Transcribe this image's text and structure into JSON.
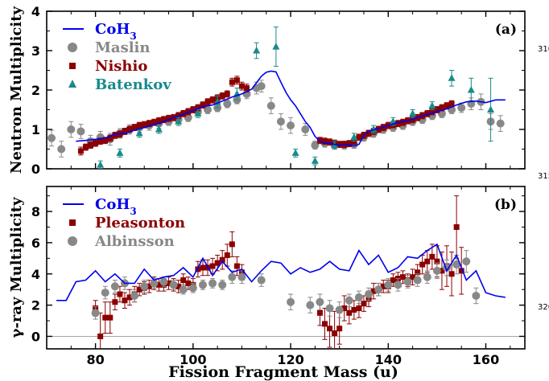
{
  "figure": {
    "xlabel": "Fission Fragment Mass (u)",
    "line_numbers": [
      "310",
      "315",
      "320"
    ],
    "x_ticks": [
      80,
      100,
      120,
      140,
      160
    ]
  },
  "chart_data": [
    {
      "type": "scatter",
      "panel_label": "(a)",
      "ylabel": "Neutron Multiplicity",
      "xlim": [
        70,
        168
      ],
      "ylim": [
        0,
        4
      ],
      "y_ticks": [
        0,
        1,
        2,
        3,
        4
      ],
      "legend_placement": "top-left",
      "series": [
        {
          "name": "CoH3",
          "kind": "line",
          "color": "#0000ee",
          "x": [
            76,
            78,
            80,
            82,
            84,
            86,
            88,
            90,
            92,
            94,
            96,
            98,
            100,
            102,
            104,
            106,
            108,
            110,
            112,
            114,
            115,
            116,
            117,
            118,
            119,
            120,
            121,
            122,
            123,
            124,
            125,
            126,
            127,
            128,
            129,
            130,
            131,
            132,
            133,
            134,
            135,
            136,
            138,
            140,
            142,
            144,
            146,
            148,
            150,
            152,
            154,
            156,
            158,
            160,
            162,
            164
          ],
          "y": [
            0.7,
            0.72,
            0.75,
            0.78,
            0.88,
            0.9,
            0.98,
            1.05,
            1.12,
            1.2,
            1.3,
            1.38,
            1.48,
            1.58,
            1.62,
            1.72,
            1.82,
            1.9,
            2.02,
            2.35,
            2.45,
            2.48,
            2.46,
            2.2,
            1.95,
            1.75,
            1.6,
            1.4,
            1.2,
            1.05,
            0.82,
            0.7,
            0.65,
            0.65,
            0.62,
            0.6,
            0.62,
            0.6,
            0.58,
            0.62,
            0.85,
            0.95,
            1.02,
            1.1,
            1.18,
            1.22,
            1.3,
            1.38,
            1.45,
            1.52,
            1.62,
            1.7,
            1.72,
            1.68,
            1.75,
            1.75
          ]
        },
        {
          "name": "Maslin",
          "kind": "circle",
          "color": "#888888",
          "x": [
            71,
            73,
            75,
            77,
            79,
            81,
            83,
            85,
            87,
            89,
            91,
            93,
            95,
            97,
            99,
            101,
            103,
            105,
            107,
            109,
            111,
            113,
            114,
            116,
            118,
            120,
            123,
            125,
            127,
            129,
            131,
            133,
            135,
            137,
            139,
            141,
            143,
            145,
            147,
            149,
            151,
            153,
            155,
            157,
            159,
            161,
            163
          ],
          "y": [
            0.78,
            0.5,
            1.0,
            0.95,
            0.7,
            0.8,
            0.75,
            0.9,
            1.0,
            1.05,
            1.1,
            1.15,
            1.2,
            1.25,
            1.3,
            1.45,
            1.5,
            1.55,
            1.65,
            1.75,
            1.9,
            2.05,
            2.1,
            1.6,
            1.2,
            1.1,
            1.0,
            0.6,
            0.65,
            0.6,
            0.6,
            0.62,
            0.8,
            0.9,
            1.0,
            1.05,
            1.1,
            1.2,
            1.25,
            1.35,
            1.4,
            1.5,
            1.55,
            1.65,
            1.7,
            1.2,
            1.15
          ],
          "err": [
            0.2,
            0.2,
            0.2,
            0.18,
            0.15,
            0.15,
            0.15,
            0.12,
            0.12,
            0.12,
            0.12,
            0.12,
            0.1,
            0.1,
            0.1,
            0.1,
            0.1,
            0.1,
            0.1,
            0.1,
            0.12,
            0.15,
            0.15,
            0.2,
            0.2,
            0.2,
            0.15,
            0.1,
            0.1,
            0.1,
            0.1,
            0.1,
            0.1,
            0.1,
            0.1,
            0.1,
            0.1,
            0.1,
            0.1,
            0.1,
            0.1,
            0.1,
            0.12,
            0.15,
            0.2,
            0.2,
            0.2
          ]
        },
        {
          "name": "Nishio",
          "kind": "square",
          "color": "#8b0000",
          "x": [
            77,
            78,
            79,
            80,
            81,
            82,
            83,
            84,
            85,
            86,
            87,
            88,
            89,
            90,
            91,
            92,
            93,
            94,
            95,
            96,
            97,
            98,
            99,
            100,
            101,
            102,
            103,
            104,
            105,
            106,
            107,
            108,
            109,
            110,
            111,
            126,
            127,
            128,
            129,
            130,
            131,
            132,
            133,
            134,
            135,
            136,
            137,
            138,
            139,
            140,
            141,
            142,
            143,
            144,
            145,
            146,
            147,
            148,
            149,
            150,
            151,
            152,
            153
          ],
          "y": [
            0.45,
            0.55,
            0.6,
            0.65,
            0.7,
            0.72,
            0.78,
            0.85,
            0.88,
            0.95,
            1.0,
            1.05,
            1.1,
            1.12,
            1.15,
            1.18,
            1.22,
            1.25,
            1.28,
            1.3,
            1.35,
            1.4,
            1.45,
            1.5,
            1.55,
            1.62,
            1.7,
            1.75,
            1.8,
            1.85,
            1.9,
            2.2,
            2.25,
            2.1,
            2.05,
            0.72,
            0.7,
            0.68,
            0.65,
            0.62,
            0.62,
            0.64,
            0.7,
            0.8,
            0.85,
            0.9,
            0.95,
            1.0,
            1.05,
            1.1,
            1.12,
            1.15,
            1.18,
            1.22,
            1.25,
            1.3,
            1.35,
            1.4,
            1.45,
            1.5,
            1.55,
            1.6,
            1.65
          ],
          "err": [
            0.1,
            0.08,
            0.08,
            0.08,
            0.08,
            0.08,
            0.08,
            0.08,
            0.08,
            0.08,
            0.08,
            0.08,
            0.08,
            0.08,
            0.08,
            0.08,
            0.08,
            0.08,
            0.08,
            0.08,
            0.08,
            0.08,
            0.08,
            0.08,
            0.08,
            0.08,
            0.08,
            0.08,
            0.08,
            0.08,
            0.08,
            0.1,
            0.1,
            0.1,
            0.1,
            0.08,
            0.08,
            0.08,
            0.08,
            0.08,
            0.08,
            0.08,
            0.08,
            0.08,
            0.08,
            0.08,
            0.08,
            0.08,
            0.08,
            0.08,
            0.08,
            0.08,
            0.08,
            0.08,
            0.08,
            0.08,
            0.08,
            0.08,
            0.08,
            0.08,
            0.08,
            0.08,
            0.08
          ]
        },
        {
          "name": "Batenkov",
          "kind": "triangle",
          "color": "#1a8a8a",
          "x": [
            81,
            85,
            89,
            93,
            97,
            101,
            105,
            109,
            113,
            117,
            121,
            125,
            129,
            133,
            137,
            141,
            145,
            149,
            153,
            157,
            161
          ],
          "y": [
            0.1,
            0.4,
            0.9,
            1.0,
            1.2,
            1.4,
            1.7,
            1.9,
            3.0,
            3.1,
            0.4,
            0.2,
            0.6,
            0.8,
            1.0,
            1.2,
            1.4,
            1.6,
            2.3,
            2.0,
            1.5
          ],
          "err": [
            0.1,
            0.1,
            0.1,
            0.1,
            0.1,
            0.1,
            0.15,
            0.15,
            0.2,
            0.5,
            0.1,
            0.1,
            0.1,
            0.1,
            0.1,
            0.1,
            0.1,
            0.1,
            0.2,
            0.3,
            0.8
          ]
        }
      ]
    },
    {
      "type": "scatter",
      "panel_label": "(b)",
      "ylabel": "γ-ray Multiplicity",
      "xlim": [
        70,
        168
      ],
      "ylim": [
        -0.8,
        9.6
      ],
      "y_ticks": [
        0,
        2,
        4,
        6,
        8
      ],
      "legend_placement": "top-left",
      "series": [
        {
          "name": "CoH3",
          "kind": "line",
          "color": "#0000ee",
          "x": [
            72,
            74,
            76,
            78,
            80,
            82,
            84,
            86,
            88,
            90,
            92,
            94,
            96,
            98,
            100,
            102,
            104,
            106,
            108,
            110,
            112,
            114,
            116,
            118,
            120,
            122,
            124,
            126,
            128,
            130,
            132,
            134,
            136,
            138,
            140,
            142,
            144,
            146,
            148,
            150,
            152,
            154,
            156,
            158,
            160,
            162,
            164
          ],
          "y": [
            2.3,
            2.3,
            3.5,
            3.6,
            4.2,
            3.5,
            4.0,
            3.4,
            3.4,
            4.3,
            3.6,
            3.8,
            3.9,
            4.4,
            3.8,
            5.0,
            3.9,
            4.8,
            4.1,
            4.3,
            3.5,
            4.2,
            4.8,
            4.7,
            4.0,
            4.4,
            4.1,
            4.3,
            4.8,
            4.3,
            4.2,
            5.5,
            4.6,
            5.2,
            4.1,
            4.4,
            5.1,
            5.0,
            5.5,
            5.9,
            4.2,
            5.2,
            3.6,
            4.2,
            2.8,
            2.6,
            2.5
          ]
        },
        {
          "name": "Pleasonton",
          "kind": "square",
          "color": "#8b0000",
          "x": [
            80,
            81,
            82,
            83,
            84,
            85,
            86,
            87,
            88,
            89,
            90,
            91,
            92,
            93,
            94,
            95,
            96,
            97,
            98,
            99,
            100,
            101,
            102,
            103,
            104,
            105,
            106,
            107,
            108,
            109,
            110,
            126,
            127,
            128,
            129,
            130,
            131,
            132,
            133,
            134,
            135,
            136,
            137,
            138,
            139,
            140,
            141,
            142,
            143,
            144,
            145,
            146,
            147,
            148,
            149,
            150,
            151,
            152,
            153,
            154,
            155
          ],
          "y": [
            1.8,
            0.0,
            1.2,
            1.2,
            2.2,
            2.7,
            2.3,
            2.5,
            2.7,
            3.0,
            3.1,
            3.2,
            3.4,
            3.3,
            3.3,
            3.4,
            3.3,
            3.2,
            3.6,
            3.4,
            3.3,
            4.3,
            4.4,
            4.4,
            4.5,
            4.7,
            4.9,
            5.2,
            5.9,
            4.5,
            4.1,
            1.5,
            0.8,
            0.5,
            0.2,
            0.5,
            1.8,
            1.5,
            1.7,
            1.8,
            2.1,
            2.4,
            2.9,
            3.0,
            3.2,
            3.2,
            3.6,
            3.7,
            3.8,
            3.6,
            3.8,
            4.1,
            4.6,
            4.8,
            5.1,
            4.8,
            4.2,
            4.5,
            4.0,
            7.0,
            4.2
          ],
          "err": [
            0.5,
            1.5,
            1.0,
            1.0,
            0.5,
            0.5,
            0.5,
            0.5,
            0.5,
            0.4,
            0.4,
            0.4,
            0.4,
            0.4,
            0.4,
            0.4,
            0.4,
            0.4,
            0.4,
            0.4,
            0.4,
            0.5,
            0.5,
            0.5,
            0.5,
            0.5,
            0.6,
            0.7,
            0.8,
            0.6,
            0.5,
            0.8,
            1.0,
            1.2,
            1.4,
            1.0,
            0.8,
            0.7,
            0.6,
            0.6,
            0.5,
            0.5,
            0.5,
            0.4,
            0.4,
            0.4,
            0.4,
            0.4,
            0.4,
            0.4,
            0.5,
            0.5,
            0.6,
            0.7,
            0.8,
            1.0,
            1.2,
            1.3,
            1.4,
            2.0,
            1.5
          ]
        },
        {
          "name": "Albinsson",
          "kind": "circle",
          "color": "#888888",
          "x": [
            80,
            82,
            84,
            86,
            88,
            90,
            92,
            94,
            96,
            98,
            100,
            102,
            104,
            106,
            108,
            110,
            114,
            120,
            124,
            126,
            128,
            130,
            132,
            134,
            136,
            138,
            140,
            142,
            144,
            146,
            148,
            150,
            152,
            154,
            156,
            158
          ],
          "y": [
            1.5,
            2.8,
            3.2,
            3.4,
            2.6,
            3.2,
            3.4,
            3.5,
            3.3,
            3.0,
            3.1,
            3.3,
            3.4,
            3.3,
            3.8,
            3.8,
            3.6,
            2.2,
            2.0,
            2.2,
            1.8,
            1.7,
            2.3,
            2.5,
            2.7,
            3.0,
            3.3,
            3.3,
            3.5,
            3.6,
            3.8,
            4.2,
            4.4,
            4.6,
            4.8,
            2.6
          ],
          "err": [
            0.4,
            0.4,
            0.4,
            0.4,
            0.4,
            0.4,
            0.3,
            0.3,
            0.3,
            0.3,
            0.3,
            0.3,
            0.3,
            0.3,
            0.4,
            0.4,
            0.4,
            0.5,
            0.5,
            0.5,
            0.5,
            0.5,
            0.4,
            0.4,
            0.4,
            0.4,
            0.4,
            0.4,
            0.4,
            0.4,
            0.4,
            0.5,
            0.5,
            0.6,
            0.7,
            0.5
          ]
        }
      ]
    }
  ]
}
